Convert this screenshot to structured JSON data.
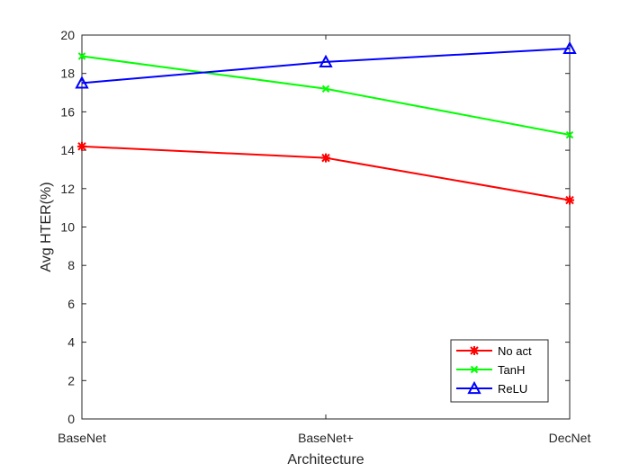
{
  "chart_data": {
    "type": "line",
    "categories": [
      "BaseNet",
      "BaseNet+",
      "DecNet"
    ],
    "xlabel": "Architecture",
    "ylabel": "Avg HTER(%)",
    "ylim": [
      0,
      20
    ],
    "yticks": [
      0,
      2,
      4,
      6,
      8,
      10,
      12,
      14,
      16,
      18,
      20
    ],
    "grid": false,
    "legend_position": "bottom-right",
    "series": [
      {
        "name": "No act",
        "values": [
          14.2,
          13.6,
          11.4
        ],
        "color": "#ff0000",
        "marker": "asterisk"
      },
      {
        "name": "TanH",
        "values": [
          18.9,
          17.2,
          14.8
        ],
        "color": "#00ff00",
        "marker": "x"
      },
      {
        "name": "ReLU",
        "values": [
          17.5,
          18.6,
          19.3
        ],
        "color": "#0000ff",
        "marker": "triangle"
      }
    ]
  }
}
